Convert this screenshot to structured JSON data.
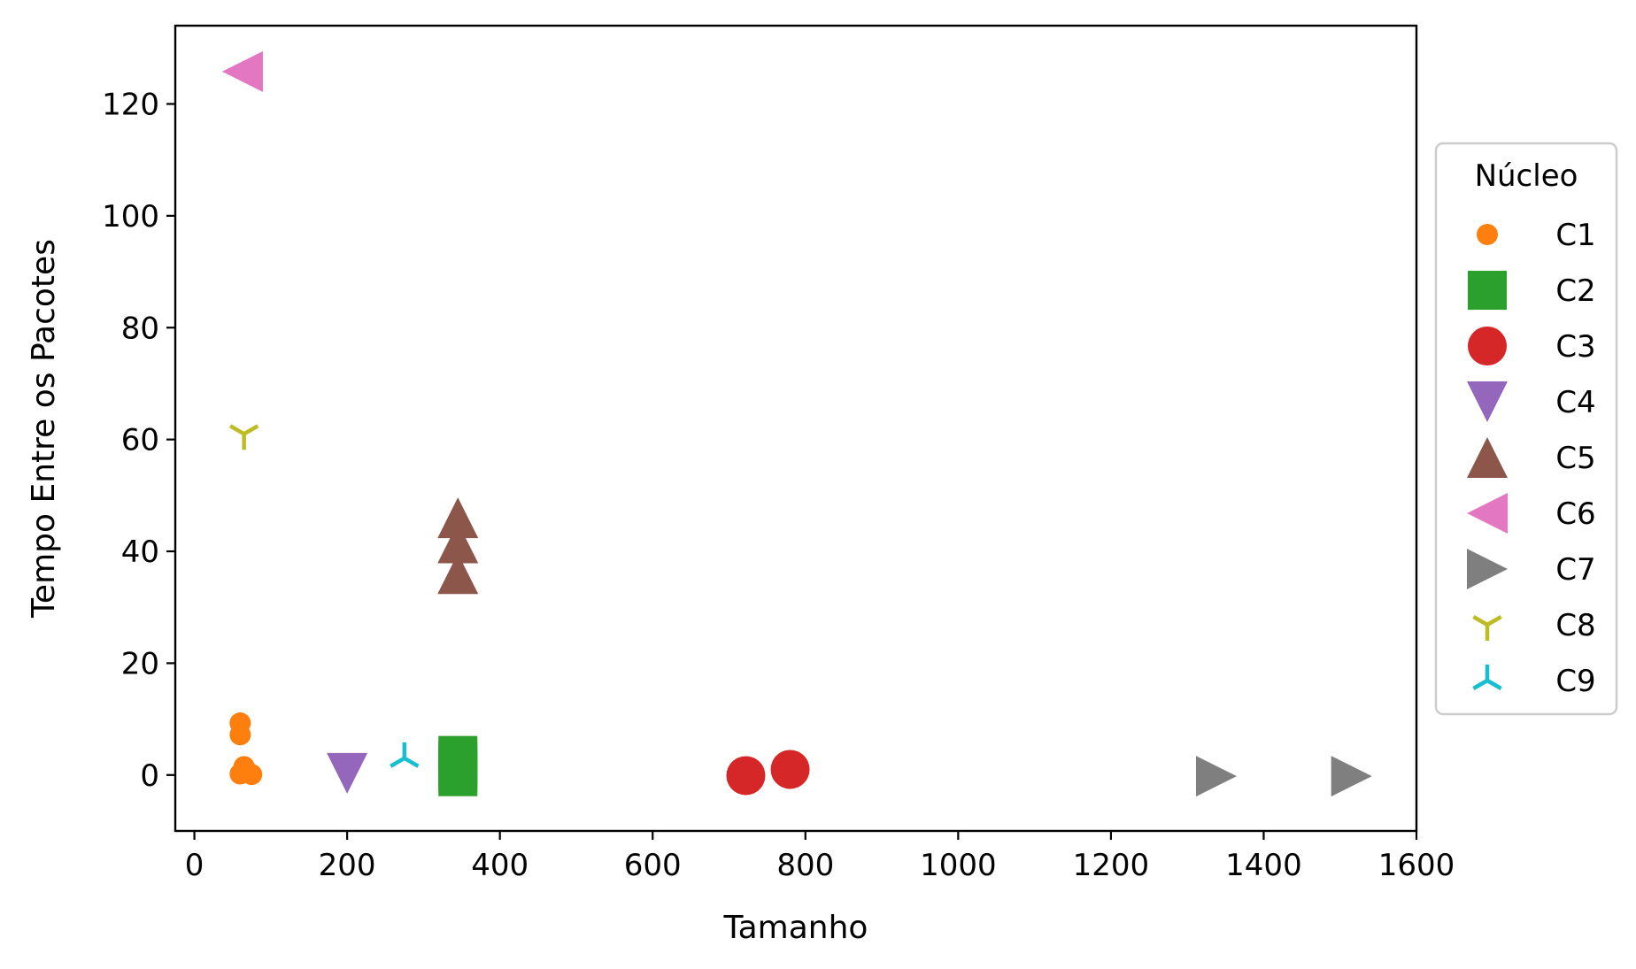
{
  "chart_data": {
    "type": "scatter",
    "title": "",
    "xlabel": "Tamanho",
    "ylabel": "Tempo Entre os Pacotes",
    "xlim": [
      -25,
      1600
    ],
    "ylim": [
      -10,
      134
    ],
    "xticks": [
      0,
      200,
      400,
      600,
      800,
      1000,
      1200,
      1400,
      1600
    ],
    "yticks": [
      0,
      20,
      40,
      60,
      80,
      100,
      120
    ],
    "grid": false,
    "legend": {
      "title": "Núcleo",
      "placement": "center-right outside"
    },
    "series": [
      {
        "name": "C1",
        "marker": "circle-small",
        "color": "#ff7f0e",
        "points": [
          [
            60,
            9.3
          ],
          [
            60,
            7.2
          ],
          [
            65,
            1.5
          ],
          [
            70,
            0.5
          ],
          [
            60,
            0.2
          ],
          [
            75,
            0.1
          ]
        ]
      },
      {
        "name": "C2",
        "marker": "square",
        "color": "#2ca02c",
        "points": [
          [
            345,
            3.5
          ],
          [
            345,
            2.5
          ],
          [
            345,
            1.5
          ],
          [
            345,
            0.5
          ],
          [
            345,
            -0.3
          ]
        ]
      },
      {
        "name": "C3",
        "marker": "circle",
        "color": "#d62728",
        "points": [
          [
            722,
            -0.1
          ],
          [
            780,
            1.0
          ]
        ]
      },
      {
        "name": "C4",
        "marker": "triangle-down",
        "color": "#9467bd",
        "points": [
          [
            200,
            0.3
          ]
        ]
      },
      {
        "name": "C5",
        "marker": "triangle-up",
        "color": "#8c564b",
        "points": [
          [
            345,
            46.0
          ],
          [
            345,
            41.5
          ],
          [
            345,
            36.0
          ]
        ]
      },
      {
        "name": "C6",
        "marker": "triangle-left",
        "color": "#e377c2",
        "points": [
          [
            63,
            125.8
          ]
        ]
      },
      {
        "name": "C7",
        "marker": "triangle-right",
        "color": "#7f7f7f",
        "points": [
          [
            1338,
            -0.2
          ],
          [
            1515,
            -0.2
          ]
        ]
      },
      {
        "name": "C8",
        "marker": "tri-down",
        "color": "#bcbd22",
        "points": [
          [
            65,
            61.0
          ]
        ]
      },
      {
        "name": "C9",
        "marker": "tri-up",
        "color": "#17becf",
        "points": [
          [
            275,
            3.0
          ]
        ]
      }
    ]
  }
}
